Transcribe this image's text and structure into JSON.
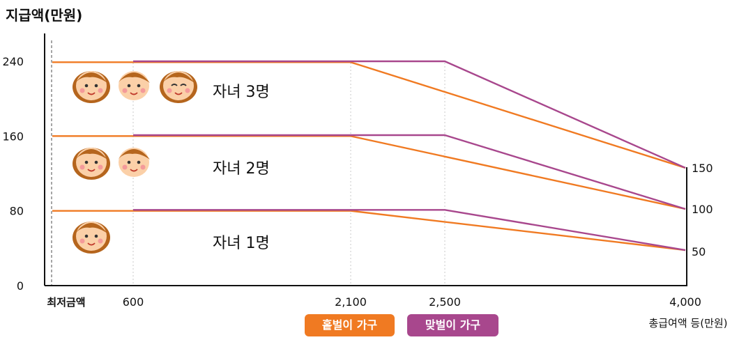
{
  "chart_data": {
    "type": "line",
    "ylabel": "지급액(만원)",
    "xlabel": "총급여액 등(만원)",
    "x_min_label": "최저금액",
    "x_ticks": [
      "600",
      "2,100",
      "2,500",
      "4,000"
    ],
    "y_ticks_left": [
      "0",
      "80",
      "160",
      "240"
    ],
    "y_ticks_right": [
      "50",
      "100",
      "150"
    ],
    "ylim": [
      0,
      240
    ],
    "legend": [
      {
        "label": "홑벌이 가구",
        "color": "#f07a22"
      },
      {
        "label": "맞벌이 가구",
        "color": "#a8478d"
      }
    ],
    "series": [
      {
        "name": "홑벌이 가구",
        "group": "자녀 1명",
        "color": "#f07a22",
        "points": [
          [
            0,
            80
          ],
          [
            600,
            80
          ],
          [
            2100,
            80
          ],
          [
            4000,
            38
          ]
        ]
      },
      {
        "name": "맞벌이 가구",
        "group": "자녀 1명",
        "color": "#a8478d",
        "points": [
          [
            600,
            81
          ],
          [
            2500,
            81
          ],
          [
            4000,
            38
          ]
        ]
      },
      {
        "name": "홑벌이 가구",
        "group": "자녀 2명",
        "color": "#f07a22",
        "points": [
          [
            0,
            160
          ],
          [
            600,
            160
          ],
          [
            2100,
            160
          ],
          [
            4000,
            82
          ]
        ]
      },
      {
        "name": "맞벌이 가구",
        "group": "자녀 2명",
        "color": "#a8478d",
        "points": [
          [
            600,
            161
          ],
          [
            2500,
            161
          ],
          [
            4000,
            82
          ]
        ]
      },
      {
        "name": "홑벌이 가구",
        "group": "자녀 3명",
        "color": "#f07a22",
        "points": [
          [
            0,
            239
          ],
          [
            600,
            239
          ],
          [
            2100,
            239
          ],
          [
            4000,
            126
          ]
        ]
      },
      {
        "name": "맞벌이 가구",
        "group": "자녀 3명",
        "color": "#a8478d",
        "points": [
          [
            600,
            240
          ],
          [
            2500,
            240
          ],
          [
            4000,
            126
          ]
        ]
      }
    ],
    "annotations": [
      {
        "text": "자녀 3명",
        "children": 3
      },
      {
        "text": "자녀 2명",
        "children": 2
      },
      {
        "text": "자녀 1명",
        "children": 1
      }
    ]
  }
}
